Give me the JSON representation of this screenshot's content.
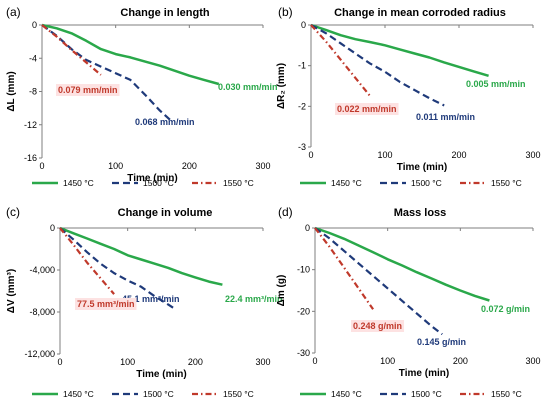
{
  "chart_data": [
    {
      "type": "line",
      "panel": "(a)",
      "title": "Change in length",
      "xlabel": "Time (min)",
      "ylabel": "ΔL (mm)",
      "xlim": [
        0,
        300
      ],
      "ylim": [
        -16,
        0
      ],
      "xticks": [
        "0",
        "100",
        "200",
        "300"
      ],
      "yticks": [
        "0",
        "-4",
        "-8",
        "-12",
        "-16"
      ],
      "grid": false,
      "legend_position": "bottom",
      "series": [
        {
          "name": "1450 °C",
          "color": "#2aa84a",
          "style": "solid",
          "annotation": "0.030 mm/min",
          "x": [
            0,
            20,
            40,
            60,
            80,
            100,
            120,
            140,
            160,
            180,
            200,
            220,
            240
          ],
          "y": [
            0,
            -0.4,
            -1.0,
            -1.9,
            -2.9,
            -3.5,
            -3.9,
            -4.4,
            -4.9,
            -5.5,
            -6.1,
            -6.6,
            -7.1
          ]
        },
        {
          "name": "1500 °C",
          "color": "#1f3a7a",
          "style": "dash",
          "annotation": "0.068 mm/min",
          "x": [
            0,
            20,
            40,
            60,
            80,
            100,
            120,
            140,
            160,
            175
          ],
          "y": [
            0,
            -1.3,
            -2.9,
            -4.2,
            -5.0,
            -5.8,
            -6.6,
            -8.4,
            -10.3,
            -11.5
          ]
        },
        {
          "name": "1550 °C",
          "color": "#c0392b",
          "style": "dashdot",
          "annotation": "0.079 mm/min",
          "x": [
            0,
            20,
            40,
            60,
            80
          ],
          "y": [
            0,
            -1.4,
            -3.0,
            -4.5,
            -6.0
          ]
        }
      ]
    },
    {
      "type": "line",
      "panel": "(b)",
      "title": "Change in mean corroded radius",
      "xlabel": "Time (min)",
      "ylabel": "ΔR₂ (mm)",
      "xlim": [
        0,
        300
      ],
      "ylim": [
        -3,
        0
      ],
      "xticks": [
        "0",
        "100",
        "200",
        "300"
      ],
      "yticks": [
        "0",
        "-1",
        "-2",
        "-3"
      ],
      "grid": false,
      "legend_position": "bottom",
      "series": [
        {
          "name": "1450 °C",
          "color": "#2aa84a",
          "style": "solid",
          "annotation": "0.005 mm/min",
          "x": [
            0,
            20,
            40,
            60,
            80,
            100,
            120,
            140,
            160,
            180,
            200,
            220,
            240
          ],
          "y": [
            0,
            -0.12,
            -0.25,
            -0.35,
            -0.42,
            -0.5,
            -0.6,
            -0.7,
            -0.8,
            -0.92,
            -1.03,
            -1.14,
            -1.25
          ]
        },
        {
          "name": "1500 °C",
          "color": "#1f3a7a",
          "style": "dash",
          "annotation": "0.011 mm/min",
          "x": [
            0,
            20,
            40,
            60,
            80,
            100,
            120,
            140,
            160,
            180
          ],
          "y": [
            0,
            -0.2,
            -0.45,
            -0.7,
            -0.95,
            -1.15,
            -1.4,
            -1.6,
            -1.8,
            -1.98
          ]
        },
        {
          "name": "1550 °C",
          "color": "#c0392b",
          "style": "dashdot",
          "annotation": "0.022 mm/min",
          "x": [
            0,
            20,
            40,
            60,
            80
          ],
          "y": [
            0,
            -0.4,
            -0.85,
            -1.3,
            -1.75
          ]
        }
      ]
    },
    {
      "type": "line",
      "panel": "(c)",
      "title": "Change in volume",
      "xlabel": "Time (min)",
      "ylabel": "ΔV (mm³)",
      "xlim": [
        0,
        300
      ],
      "ylim": [
        -12000,
        0
      ],
      "xticks": [
        "0",
        "100",
        "200",
        "300"
      ],
      "yticks": [
        "0",
        "-4,000",
        "-8,000",
        "-12,000"
      ],
      "grid": false,
      "legend_position": "bottom",
      "series": [
        {
          "name": "1450 °C",
          "color": "#2aa84a",
          "style": "solid",
          "annotation": "22.4 mm³/min",
          "x": [
            0,
            20,
            40,
            60,
            80,
            100,
            120,
            140,
            160,
            180,
            200,
            220,
            240
          ],
          "y": [
            0,
            -500,
            -1000,
            -1500,
            -2000,
            -2600,
            -3000,
            -3400,
            -3800,
            -4300,
            -4700,
            -5100,
            -5400
          ]
        },
        {
          "name": "1500 °C",
          "color": "#1f3a7a",
          "style": "dash",
          "annotation": "45.1 mm³/min",
          "x": [
            0,
            20,
            40,
            60,
            80,
            100,
            120,
            140,
            160,
            170
          ],
          "y": [
            0,
            -1100,
            -2300,
            -3400,
            -4300,
            -5000,
            -5600,
            -6500,
            -7300,
            -7700
          ]
        },
        {
          "name": "1550 °C",
          "color": "#c0392b",
          "style": "dashdot",
          "annotation": "77.5 mm³/min",
          "x": [
            0,
            20,
            40,
            60,
            80
          ],
          "y": [
            0,
            -1600,
            -3300,
            -4800,
            -6300
          ]
        }
      ]
    },
    {
      "type": "line",
      "panel": "(d)",
      "title": "Mass loss",
      "xlabel": "Time (min)",
      "ylabel": "Δm (g)",
      "xlim": [
        0,
        300
      ],
      "ylim": [
        -30,
        0
      ],
      "xticks": [
        "0",
        "100",
        "200",
        "300"
      ],
      "yticks": [
        "0",
        "-10",
        "-20",
        "-30"
      ],
      "grid": false,
      "legend_position": "bottom",
      "series": [
        {
          "name": "1450 °C",
          "color": "#2aa84a",
          "style": "solid",
          "annotation": "0.072 g/min",
          "x": [
            0,
            20,
            40,
            60,
            80,
            100,
            120,
            140,
            160,
            180,
            200,
            220,
            240
          ],
          "y": [
            0,
            -1.2,
            -2.6,
            -4.2,
            -5.8,
            -7.5,
            -9.0,
            -10.6,
            -12.1,
            -13.6,
            -15.0,
            -16.3,
            -17.4
          ]
        },
        {
          "name": "1500 °C",
          "color": "#1f3a7a",
          "style": "dash",
          "annotation": "0.145 g/min",
          "x": [
            0,
            20,
            40,
            60,
            80,
            100,
            120,
            140,
            160,
            175
          ],
          "y": [
            0,
            -2.5,
            -5.5,
            -8.5,
            -11.5,
            -14.5,
            -17.5,
            -20.5,
            -23.5,
            -25.5
          ]
        },
        {
          "name": "1550 °C",
          "color": "#c0392b",
          "style": "dashdot",
          "annotation": "0.248 g/min",
          "x": [
            0,
            20,
            40,
            60,
            80
          ],
          "y": [
            0,
            -4.5,
            -9.5,
            -14.5,
            -19.5
          ]
        }
      ]
    }
  ]
}
